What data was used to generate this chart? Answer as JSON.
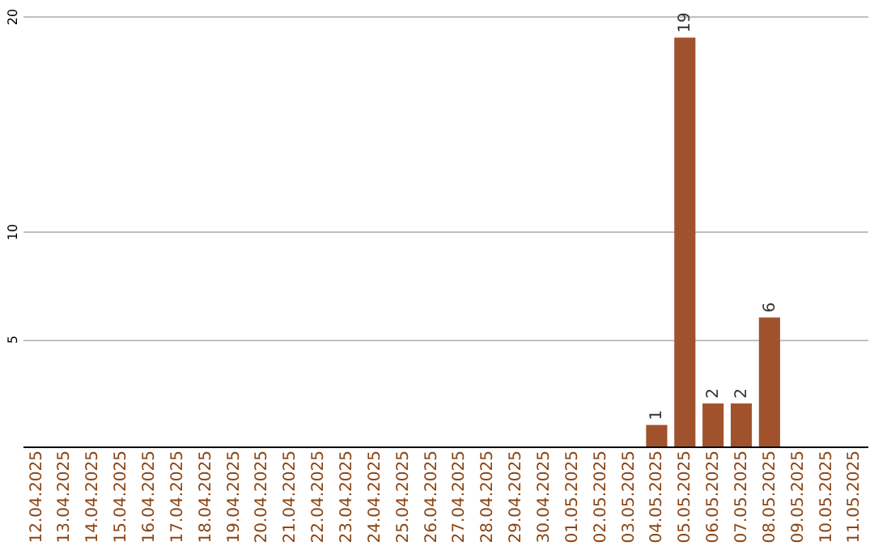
{
  "chart_data": {
    "type": "bar",
    "categories": [
      "12.04.2025",
      "13.04.2025",
      "14.04.2025",
      "15.04.2025",
      "16.04.2025",
      "17.04.2025",
      "18.04.2025",
      "19.04.2025",
      "20.04.2025",
      "21.04.2025",
      "22.04.2025",
      "23.04.2025",
      "24.04.2025",
      "25.04.2025",
      "26.04.2025",
      "27.04.2025",
      "28.04.2025",
      "29.04.2025",
      "30.04.2025",
      "01.05.2025",
      "02.05.2025",
      "03.05.2025",
      "04.05.2025",
      "05.05.2025",
      "06.05.2025",
      "07.05.2025",
      "08.05.2025",
      "09.05.2025",
      "10.05.2025",
      "11.05.2025"
    ],
    "values": [
      0,
      0,
      0,
      0,
      0,
      0,
      0,
      0,
      0,
      0,
      0,
      0,
      0,
      0,
      0,
      0,
      0,
      0,
      0,
      0,
      0,
      0,
      1,
      19,
      2,
      2,
      6,
      0,
      0,
      0
    ],
    "value_labels": [
      null,
      null,
      null,
      null,
      null,
      null,
      null,
      null,
      null,
      null,
      null,
      null,
      null,
      null,
      null,
      null,
      null,
      null,
      null,
      null,
      null,
      null,
      "1",
      "19",
      "2",
      "2",
      "6",
      null,
      null,
      null
    ],
    "color": "#a0522d",
    "ylim": [
      0,
      20
    ],
    "yticks": [
      5,
      10,
      20
    ],
    "grid": "y"
  }
}
